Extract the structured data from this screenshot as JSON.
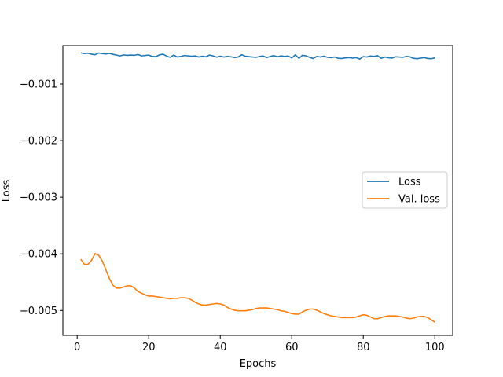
{
  "chart_data": {
    "type": "line",
    "xlabel": "Epochs",
    "ylabel": "Loss",
    "xlim": [
      -4.0,
      105.0
    ],
    "ylim": [
      -0.00544,
      -0.00032
    ],
    "xticks": [
      0,
      20,
      40,
      60,
      80,
      100
    ],
    "xtick_labels": [
      "0",
      "20",
      "40",
      "60",
      "80",
      "100"
    ],
    "yticks": [
      -0.001,
      -0.002,
      -0.003,
      -0.004,
      -0.005
    ],
    "ytick_labels": [
      "−0.001",
      "−0.002",
      "−0.003",
      "−0.004",
      "−0.005"
    ],
    "grid": false,
    "legend": "center-right",
    "x": [
      1,
      2,
      3,
      4,
      5,
      6,
      7,
      8,
      9,
      10,
      11,
      12,
      13,
      14,
      15,
      16,
      17,
      18,
      19,
      20,
      21,
      22,
      23,
      24,
      25,
      26,
      27,
      28,
      29,
      30,
      31,
      32,
      33,
      34,
      35,
      36,
      37,
      38,
      39,
      40,
      41,
      42,
      43,
      44,
      45,
      46,
      47,
      48,
      49,
      50,
      51,
      52,
      53,
      54,
      55,
      56,
      57,
      58,
      59,
      60,
      61,
      62,
      63,
      64,
      65,
      66,
      67,
      68,
      69,
      70,
      71,
      72,
      73,
      74,
      75,
      76,
      77,
      78,
      79,
      80,
      81,
      82,
      83,
      84,
      85,
      86,
      87,
      88,
      89,
      90,
      91,
      92,
      93,
      94,
      95,
      96,
      97,
      98,
      99,
      100
    ],
    "series": [
      {
        "name": "Loss",
        "color": "#1f77b4",
        "values": [
          -0.000448,
          -0.000462,
          -0.000455,
          -0.000472,
          -0.000482,
          -0.000452,
          -0.000462,
          -0.000468,
          -0.000458,
          -0.000475,
          -0.000488,
          -0.000502,
          -0.000485,
          -0.000492,
          -0.000488,
          -0.000492,
          -0.000478,
          -0.000502,
          -0.000495,
          -0.000488,
          -0.000512,
          -0.000515,
          -0.000485,
          -0.000472,
          -0.000505,
          -0.000528,
          -0.000488,
          -0.000522,
          -0.000512,
          -0.000495,
          -0.000502,
          -0.000508,
          -0.000502,
          -0.000522,
          -0.000508,
          -0.000518,
          -0.000488,
          -0.000502,
          -0.000525,
          -0.000508,
          -0.000522,
          -0.000512,
          -0.000518,
          -0.000532,
          -0.000522,
          -0.000482,
          -0.000508,
          -0.000515,
          -0.000522,
          -0.000528,
          -0.000512,
          -0.000505,
          -0.000532,
          -0.000512,
          -0.000498,
          -0.000518,
          -0.000502,
          -0.000512,
          -0.000505,
          -0.000538,
          -0.000485,
          -0.000545,
          -0.000492,
          -0.000502,
          -0.000528,
          -0.000548,
          -0.000512,
          -0.000522,
          -0.000508,
          -0.000528,
          -0.000532,
          -0.000522,
          -0.000545,
          -0.000548,
          -0.000538,
          -0.000532,
          -0.000542,
          -0.000532,
          -0.000558,
          -0.000515,
          -0.000522,
          -0.000505,
          -0.000512,
          -0.000498,
          -0.000545,
          -0.000522,
          -0.000535,
          -0.000542,
          -0.000518,
          -0.000522,
          -0.000528,
          -0.000512,
          -0.000518,
          -0.000545,
          -0.000552,
          -0.000542,
          -0.000532,
          -0.000548,
          -0.000552,
          -0.000538
        ]
      },
      {
        "name": "Val. loss",
        "color": "#ff7f0e",
        "values": [
          -0.004095,
          -0.004185,
          -0.004185,
          -0.004115,
          -0.003995,
          -0.004025,
          -0.004125,
          -0.004275,
          -0.004435,
          -0.004555,
          -0.004605,
          -0.004605,
          -0.004585,
          -0.004565,
          -0.004565,
          -0.004605,
          -0.004665,
          -0.004695,
          -0.004725,
          -0.004745,
          -0.004745,
          -0.004755,
          -0.004765,
          -0.004775,
          -0.004785,
          -0.004795,
          -0.004785,
          -0.004785,
          -0.004775,
          -0.004775,
          -0.004785,
          -0.004815,
          -0.004855,
          -0.004885,
          -0.004905,
          -0.004905,
          -0.004895,
          -0.004885,
          -0.004875,
          -0.004885,
          -0.004905,
          -0.004945,
          -0.004975,
          -0.004995,
          -0.005005,
          -0.005005,
          -0.005005,
          -0.004995,
          -0.004985,
          -0.004965,
          -0.004955,
          -0.004955,
          -0.004955,
          -0.004965,
          -0.004975,
          -0.004985,
          -0.005005,
          -0.005015,
          -0.005035,
          -0.005055,
          -0.005065,
          -0.005065,
          -0.005025,
          -0.004995,
          -0.004975,
          -0.004975,
          -0.004995,
          -0.005025,
          -0.005055,
          -0.005075,
          -0.005095,
          -0.005105,
          -0.005115,
          -0.005125,
          -0.005125,
          -0.005125,
          -0.005125,
          -0.005115,
          -0.005095,
          -0.005075,
          -0.005085,
          -0.005115,
          -0.005145,
          -0.005145,
          -0.005125,
          -0.005105,
          -0.005095,
          -0.005095,
          -0.005095,
          -0.005105,
          -0.005115,
          -0.005135,
          -0.005145,
          -0.005135,
          -0.005115,
          -0.005105,
          -0.005105,
          -0.005125,
          -0.005165,
          -0.005205
        ]
      }
    ]
  }
}
